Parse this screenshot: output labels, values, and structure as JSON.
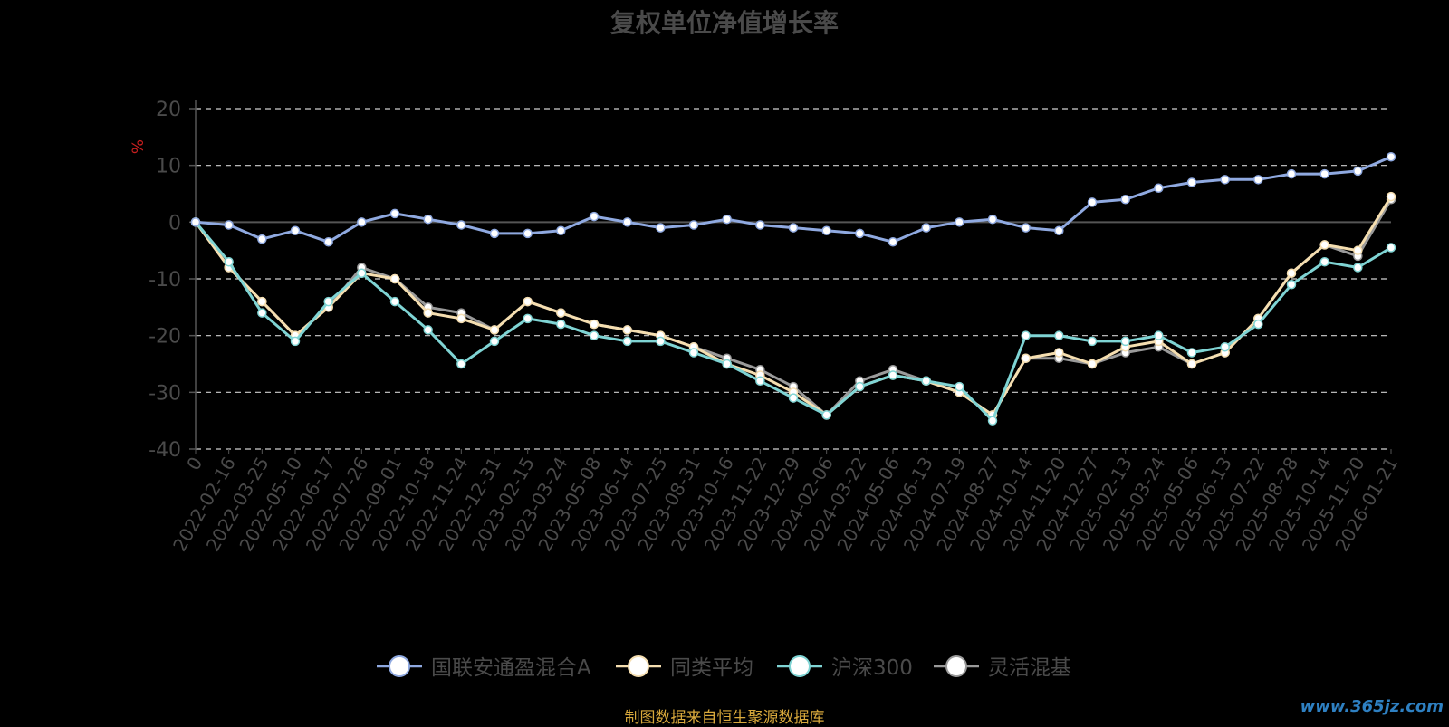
{
  "title": "复权单位净值增长率",
  "source": "制图数据来自恒生聚源数据库",
  "watermark": "www.365jz.com",
  "chart_data": {
    "type": "line",
    "title": "复权单位净值增长率",
    "ylabel": "%",
    "ylim": [
      -40,
      20
    ],
    "yticks": [
      20,
      10,
      0,
      -10,
      -20,
      -30,
      -40
    ],
    "xlabels": [
      "0",
      "2022-02-16",
      "2022-03-25",
      "2022-05-10",
      "2022-06-17",
      "2022-07-26",
      "2022-09-01",
      "2022-10-18",
      "2022-11-24",
      "2022-12-31",
      "2023-02-15",
      "2023-03-24",
      "2023-05-08",
      "2023-06-14",
      "2023-07-25",
      "2023-08-31",
      "2023-10-16",
      "2023-11-22",
      "2023-12-29",
      "2024-02-06",
      "2024-03-22",
      "2024-05-06",
      "2024-06-13",
      "2024-07-19",
      "2024-08-27",
      "2024-10-14",
      "2024-11-20",
      "2024-12-27",
      "2025-02-13",
      "2025-03-24",
      "2025-05-06",
      "2025-06-13",
      "2025-07-22",
      "2025-08-28",
      "2025-10-14",
      "2025-11-20",
      "2026-01-21"
    ],
    "grid": true,
    "legend_position": "bottom",
    "series": [
      {
        "name": "国联安通盈混合A",
        "color": "#8fa9e0",
        "values": [
          0,
          -0.5,
          -3,
          -1.5,
          -3.5,
          0,
          1.5,
          0.5,
          -0.5,
          -2,
          -2,
          -1.5,
          1,
          0,
          -1,
          -0.5,
          0.5,
          -0.5,
          -1,
          -1.5,
          -2,
          -3.5,
          -1,
          0,
          0.5,
          -1,
          -1.5,
          3.5,
          4,
          6,
          7,
          7.5,
          7.5,
          8.5,
          8.5,
          9,
          11.5
        ]
      },
      {
        "name": "同类平均",
        "color": "#f5deb0",
        "values": [
          0,
          -8,
          -14,
          -20,
          -15,
          -9,
          -10,
          -16,
          -17,
          -19,
          -14,
          -16,
          -18,
          -19,
          -20,
          -22,
          -25,
          -27,
          -30,
          -34,
          -29,
          -27,
          -28,
          -30,
          -34,
          -24,
          -23,
          -25,
          -22,
          -21,
          -25,
          -23,
          -17,
          -9,
          -4,
          -5,
          4.5
        ]
      },
      {
        "name": "沪深300",
        "color": "#7fd4d4",
        "values": [
          0,
          -7,
          -16,
          -21,
          -14,
          -9,
          -14,
          -19,
          -25,
          -21,
          -17,
          -18,
          -20,
          -21,
          -21,
          -23,
          -25,
          -28,
          -31,
          -34,
          -29,
          -27,
          -28,
          -29,
          -35,
          -20,
          -20,
          -21,
          -21,
          -20,
          -23,
          -22,
          -18,
          -11,
          -7,
          -8,
          -4.5
        ]
      },
      {
        "name": "灵活混基",
        "color": "#9a9a9a",
        "values": [
          0,
          -8,
          -14,
          -20,
          -15,
          -8,
          -10,
          -15,
          -16,
          -19,
          -14,
          -16,
          -18,
          -19,
          -20,
          -22,
          -24,
          -26,
          -29,
          -34,
          -28,
          -26,
          -28,
          -30,
          -34,
          -24,
          -24,
          -25,
          -23,
          -22,
          -25,
          -23,
          -17,
          -9,
          -4,
          -6,
          4
        ]
      }
    ]
  }
}
